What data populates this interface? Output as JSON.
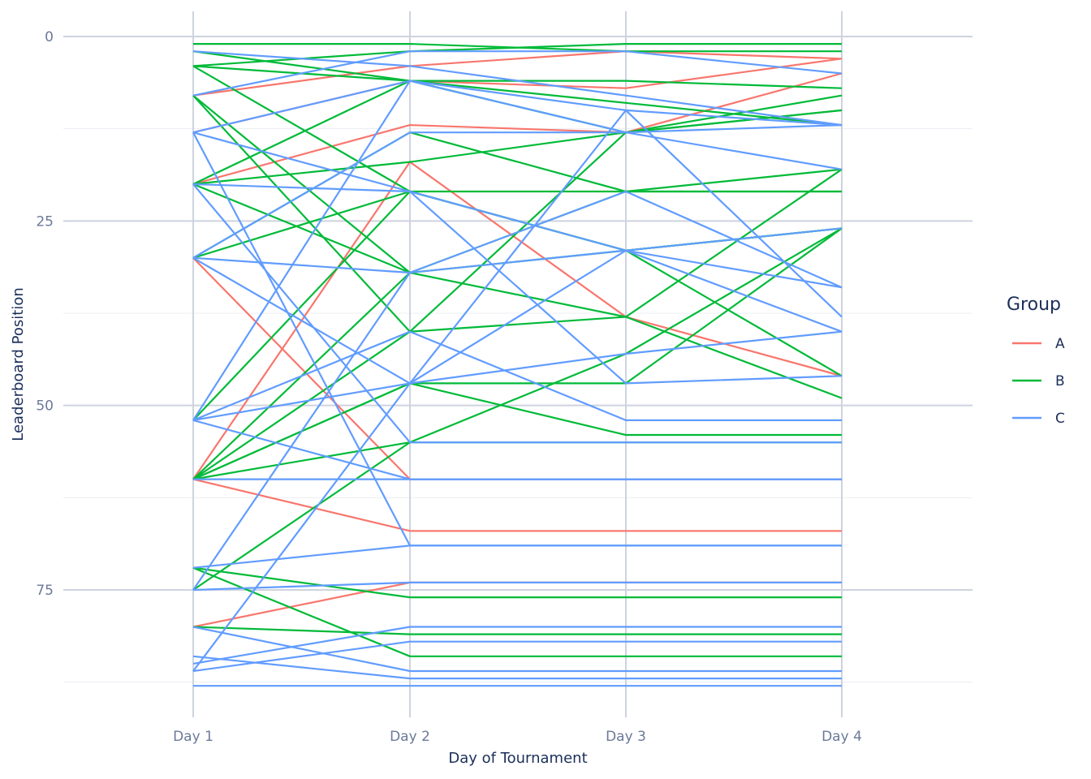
{
  "chart_data": {
    "type": "line",
    "title": "",
    "xlabel": "Day of Tournament",
    "ylabel": "Leaderboard Position",
    "categories": [
      "Day 1",
      "Day 2",
      "Day 3",
      "Day 4"
    ],
    "y_ticks": [
      "0",
      "25",
      "50",
      "75"
    ],
    "ylim": [
      92,
      -3
    ],
    "y_reversed": true,
    "grid": true,
    "legend": {
      "title": "Group",
      "position": "right",
      "entries": [
        {
          "name": "A",
          "color": "#f8766d"
        },
        {
          "name": "B",
          "color": "#00ba38"
        },
        {
          "name": "C",
          "color": "#619cff"
        }
      ]
    },
    "series": [
      {
        "group": "A",
        "values": [
          8,
          4,
          2,
          3
        ]
      },
      {
        "group": "A",
        "values": [
          20,
          12,
          13,
          5
        ]
      },
      {
        "group": "A",
        "values": [
          13,
          6,
          7,
          3
        ]
      },
      {
        "group": "A",
        "values": [
          30,
          60,
          60,
          60
        ]
      },
      {
        "group": "A",
        "values": [
          60,
          67,
          67,
          67
        ]
      },
      {
        "group": "A",
        "values": [
          60,
          17,
          38,
          46
        ]
      },
      {
        "group": "A",
        "values": [
          80,
          74,
          74,
          74
        ]
      },
      {
        "group": "B",
        "values": [
          1,
          1,
          2,
          2
        ]
      },
      {
        "group": "B",
        "values": [
          4,
          2,
          1,
          1
        ]
      },
      {
        "group": "B",
        "values": [
          2,
          6,
          6,
          7
        ]
      },
      {
        "group": "B",
        "values": [
          4,
          6,
          9,
          12
        ]
      },
      {
        "group": "B",
        "values": [
          4,
          21,
          29,
          26
        ]
      },
      {
        "group": "B",
        "values": [
          8,
          32,
          38,
          49
        ]
      },
      {
        "group": "B",
        "values": [
          8,
          40,
          13,
          10
        ]
      },
      {
        "group": "B",
        "values": [
          20,
          6,
          13,
          8
        ]
      },
      {
        "group": "B",
        "values": [
          20,
          17,
          13,
          10
        ]
      },
      {
        "group": "B",
        "values": [
          20,
          32,
          21,
          21
        ]
      },
      {
        "group": "B",
        "values": [
          30,
          13,
          21,
          18
        ]
      },
      {
        "group": "B",
        "values": [
          30,
          21,
          21,
          21
        ]
      },
      {
        "group": "B",
        "values": [
          52,
          21,
          29,
          46
        ]
      },
      {
        "group": "B",
        "values": [
          60,
          32,
          29,
          26
        ]
      },
      {
        "group": "B",
        "values": [
          60,
          40,
          38,
          18
        ]
      },
      {
        "group": "B",
        "values": [
          60,
          47,
          47,
          26
        ]
      },
      {
        "group": "B",
        "values": [
          60,
          47,
          54,
          54
        ]
      },
      {
        "group": "B",
        "values": [
          60,
          55,
          55,
          55
        ]
      },
      {
        "group": "B",
        "values": [
          75,
          55,
          43,
          26
        ]
      },
      {
        "group": "B",
        "values": [
          72,
          76,
          76,
          76
        ]
      },
      {
        "group": "B",
        "values": [
          72,
          84,
          84,
          84
        ]
      },
      {
        "group": "B",
        "values": [
          80,
          81,
          81,
          81
        ]
      },
      {
        "group": "C",
        "values": [
          2,
          4,
          8,
          12
        ]
      },
      {
        "group": "C",
        "values": [
          8,
          2,
          2,
          5
        ]
      },
      {
        "group": "C",
        "values": [
          13,
          6,
          10,
          12
        ]
      },
      {
        "group": "C",
        "values": [
          13,
          21,
          29,
          40
        ]
      },
      {
        "group": "C",
        "values": [
          13,
          69,
          69,
          69
        ]
      },
      {
        "group": "C",
        "values": [
          20,
          21,
          47,
          46
        ]
      },
      {
        "group": "C",
        "values": [
          20,
          55,
          55,
          55
        ]
      },
      {
        "group": "C",
        "values": [
          30,
          13,
          13,
          12
        ]
      },
      {
        "group": "C",
        "values": [
          30,
          32,
          29,
          34
        ]
      },
      {
        "group": "C",
        "values": [
          30,
          47,
          43,
          40
        ]
      },
      {
        "group": "C",
        "values": [
          52,
          6,
          13,
          18
        ]
      },
      {
        "group": "C",
        "values": [
          52,
          40,
          52,
          52
        ]
      },
      {
        "group": "C",
        "values": [
          52,
          60,
          60,
          60
        ]
      },
      {
        "group": "C",
        "values": [
          52,
          47,
          29,
          26
        ]
      },
      {
        "group": "C",
        "values": [
          60,
          60,
          60,
          60
        ]
      },
      {
        "group": "C",
        "values": [
          72,
          69,
          69,
          69
        ]
      },
      {
        "group": "C",
        "values": [
          75,
          74,
          74,
          74
        ]
      },
      {
        "group": "C",
        "values": [
          75,
          32,
          21,
          34
        ]
      },
      {
        "group": "C",
        "values": [
          84,
          87,
          87,
          87
        ]
      },
      {
        "group": "C",
        "values": [
          85,
          80,
          80,
          80
        ]
      },
      {
        "group": "C",
        "values": [
          86,
          82,
          82,
          82
        ]
      },
      {
        "group": "C",
        "values": [
          86,
          47,
          10,
          38
        ]
      },
      {
        "group": "C",
        "values": [
          88,
          88,
          88,
          88
        ]
      },
      {
        "group": "C",
        "values": [
          80,
          86,
          86,
          86
        ]
      }
    ]
  }
}
